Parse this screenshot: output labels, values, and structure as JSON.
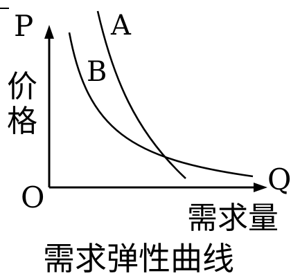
{
  "chart_data": {
    "type": "line",
    "title": "需求弹性曲线",
    "xlabel": "需求量",
    "ylabel": "价格",
    "x_axis_letter": "Q",
    "y_axis_letter": "P",
    "origin_label": "O",
    "grid": false,
    "legend": "none",
    "series": [
      {
        "name": "A"
      },
      {
        "name": "B"
      }
    ]
  },
  "colors": {
    "ink": "#000000",
    "background": "#ffffff"
  }
}
